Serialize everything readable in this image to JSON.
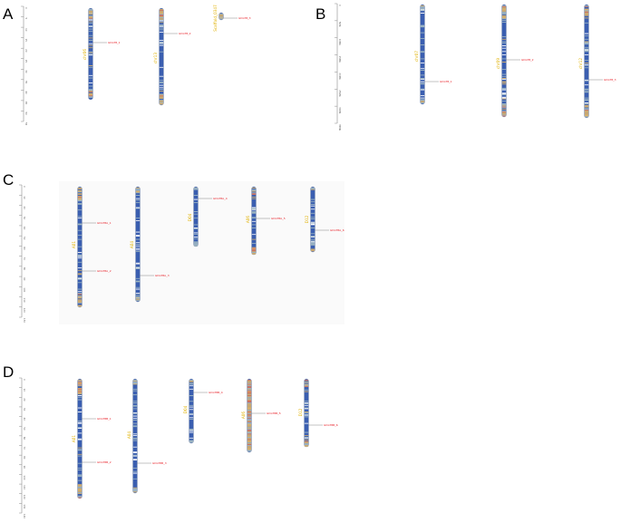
{
  "colors": {
    "axis": "#8a8a8a",
    "gene_label": "#e8222a",
    "chrom_label": "#e0b100",
    "density_low": "#3b5fb0",
    "density_mid": "#9fb7c2",
    "density_high": "#d8b06a",
    "density_max": "#d9735a",
    "panel_bg": "#fafafa"
  },
  "panels": [
    {
      "letter": "A",
      "axis_ticks": [
        "0",
        "5",
        "10",
        "15",
        "20",
        "25",
        "30",
        "35",
        "40",
        "45",
        "50",
        "55"
      ],
      "chromosomes": [
        {
          "label": "chr06",
          "genes": [
            "GhGT8_1"
          ],
          "density": "mixed"
        },
        {
          "label": "chr13",
          "genes": [
            "GhGT8_2"
          ],
          "density": "mixed"
        },
        {
          "label": "Scaffold_0347",
          "genes": [
            "GhGT8_3"
          ],
          "density": "high"
        }
      ]
    },
    {
      "letter": "B",
      "axis_ticks": [
        "0",
        "5Mb",
        "10Mb",
        "15Mb",
        "20Mb",
        "25Mb",
        "30Mb",
        "35Mb"
      ],
      "chromosomes": [
        {
          "label": "chr07",
          "genes": [
            "GhGT8_1"
          ],
          "density": "low"
        },
        {
          "label": "chr09",
          "genes": [
            "GhGT8_2"
          ],
          "density": "mixed"
        },
        {
          "label": "chr12",
          "genes": [
            "GhGT8_3"
          ],
          "density": "mixed"
        }
      ]
    },
    {
      "letter": "C",
      "axis_ticks": [
        "0",
        "10",
        "20",
        "30",
        "40",
        "50",
        "60",
        "70",
        "80",
        "90",
        "100",
        "110",
        "120",
        "130"
      ],
      "chromosomes": [
        {
          "label": "A01",
          "genes": [
            "GhGT8A_1",
            "GhGT8A_2"
          ],
          "density": "mixed"
        },
        {
          "label": "A04",
          "genes": [
            "GhGT8A_3"
          ],
          "density": "low"
        },
        {
          "label": "D04",
          "genes": [
            "GhGT8A_4"
          ],
          "density": "low"
        },
        {
          "label": "A06",
          "genes": [
            "GhGT8A_5"
          ],
          "density": "mixed"
        },
        {
          "label": "D12",
          "genes": [
            "GhGT8A_6"
          ],
          "density": "low"
        }
      ]
    },
    {
      "letter": "D",
      "axis_ticks": [
        "0",
        "10",
        "20",
        "30",
        "40",
        "50",
        "60",
        "70",
        "80",
        "90",
        "100",
        "110",
        "120",
        "130",
        "140"
      ],
      "chromosomes": [
        {
          "label": "A01",
          "genes": [
            "GhGT8B_1",
            "GhGT8B_2"
          ],
          "density": "mixed"
        },
        {
          "label": "A04",
          "genes": [
            "GhGT8B_3"
          ],
          "density": "low"
        },
        {
          "label": "D04",
          "genes": [
            "GhGT8B_4"
          ],
          "density": "low"
        },
        {
          "label": "A06",
          "genes": [
            "GhGT8B_5"
          ],
          "density": "high"
        },
        {
          "label": "D12",
          "genes": [
            "GhGT8B_6"
          ],
          "density": "mixed"
        }
      ]
    }
  ]
}
